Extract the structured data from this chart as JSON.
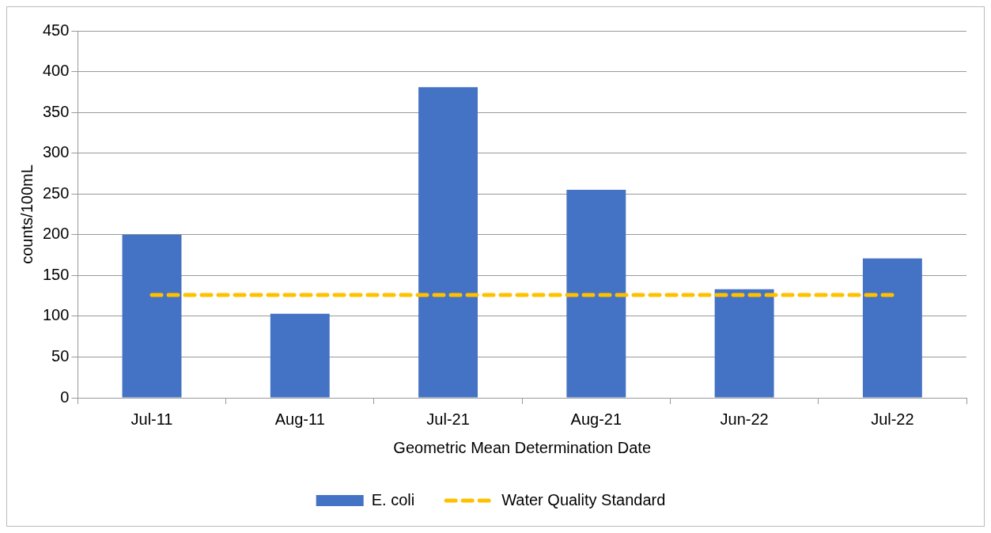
{
  "chart_data": {
    "type": "bar",
    "xlabel": "Geometric Mean Determination Date",
    "ylabel": "counts/100mL",
    "categories": [
      "Jul-11",
      "Aug-11",
      "Jul-21",
      "Aug-21",
      "Jun-22",
      "Jul-22"
    ],
    "series": [
      {
        "name": "E. coli",
        "color": "#4472c4",
        "values": [
          200,
          103,
          381,
          255,
          133,
          171
        ]
      },
      {
        "name": "Water Quality Standard",
        "type": "line",
        "color": "#ffc000",
        "line_style": "dashed",
        "marker": "none",
        "values": [
          126,
          126,
          126,
          126,
          126,
          126
        ]
      }
    ],
    "ylim": [
      0,
      450
    ],
    "yticks": [
      0,
      50,
      100,
      150,
      200,
      250,
      300,
      350,
      400,
      450
    ],
    "grid": "y",
    "legend": "bottom"
  }
}
